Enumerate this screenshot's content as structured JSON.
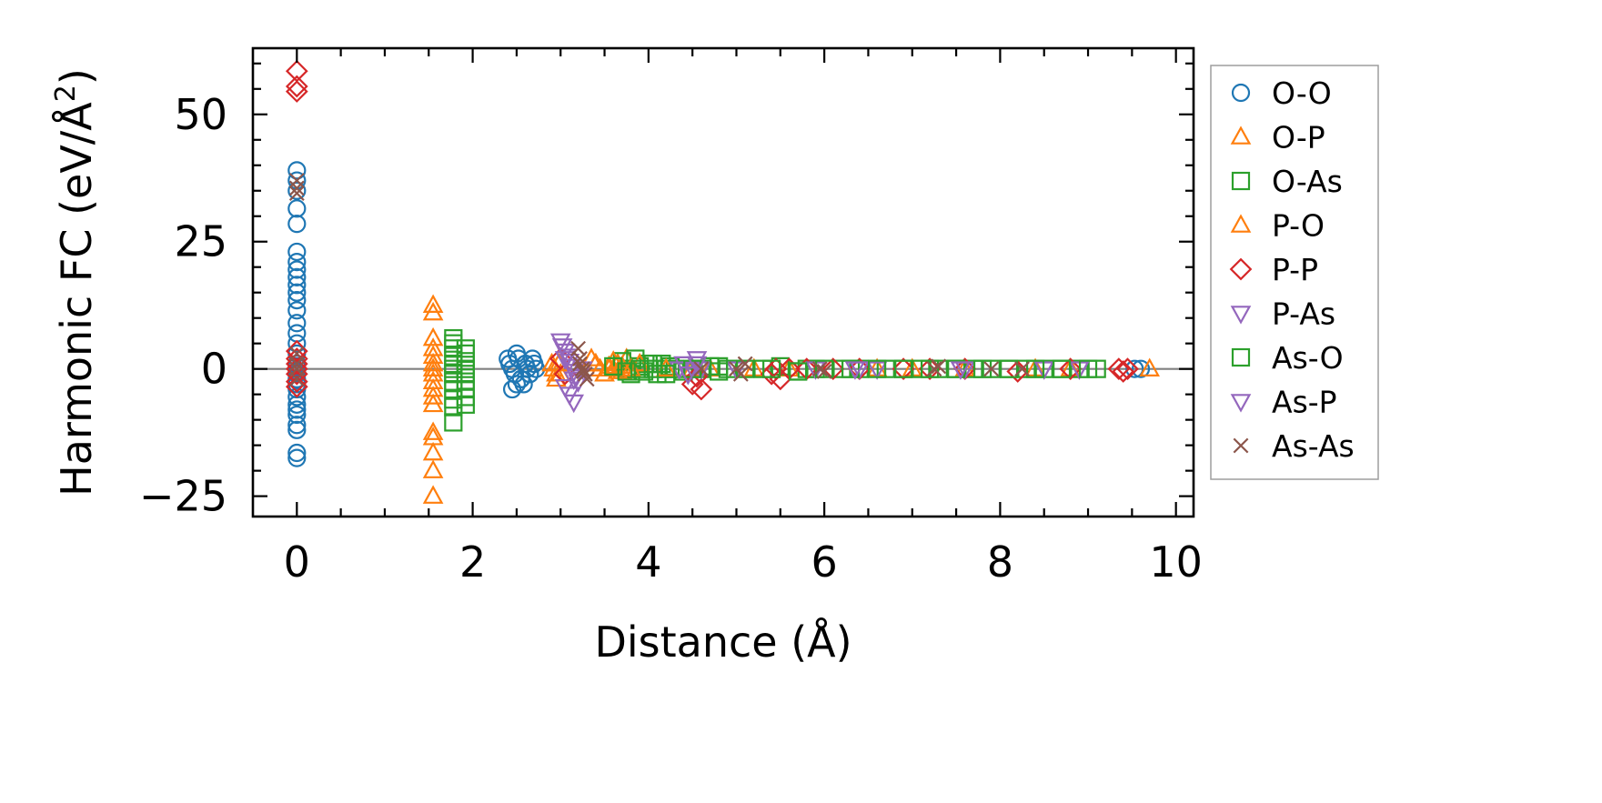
{
  "chart_data": {
    "type": "scatter",
    "xlabel": "Distance (Å)",
    "ylabel": "Harmonic FC (eV/Å",
    "ylabel_sup": "2",
    "ylabel_end": ")",
    "xlim": [
      -0.5,
      10.2
    ],
    "ylim": [
      -29,
      63
    ],
    "xticks": [
      0,
      2,
      4,
      6,
      8,
      10
    ],
    "xtick_labels": [
      "0",
      "2",
      "4",
      "6",
      "8",
      "10"
    ],
    "yticks": [
      -25,
      0,
      25,
      50
    ],
    "ytick_labels": [
      "−25",
      "0",
      "25",
      "50"
    ],
    "grid": false,
    "zero_line": true,
    "legend_position": "outside-right",
    "series": [
      {
        "name": "O-O",
        "marker": "circle",
        "color": "#1f77b4",
        "x": [
          0,
          0,
          0,
          0,
          0,
          0,
          0,
          0,
          0,
          0,
          0,
          0,
          0,
          0,
          0,
          0,
          0,
          0,
          0,
          0,
          0,
          0,
          0,
          0,
          0,
          0,
          0,
          0,
          0,
          0,
          0,
          0,
          2.4,
          2.42,
          2.45,
          2.48,
          2.5,
          2.52,
          2.55,
          2.58,
          2.6,
          2.62,
          2.65,
          2.68,
          2.7,
          2.72,
          2.45,
          2.5,
          2.55,
          2.6,
          2.65,
          9.53,
          9.6
        ],
        "y": [
          39,
          37,
          35,
          31.5,
          28.5,
          23,
          21,
          19.5,
          18,
          16.5,
          15,
          13.5,
          11.5,
          9,
          7,
          5,
          3,
          1,
          -1,
          -2,
          -3,
          -4,
          -5.5,
          -7,
          -8,
          -9,
          -11,
          -12,
          -16.5,
          -17.5,
          -0.5,
          0.5,
          2,
          1,
          0,
          -1,
          3,
          2,
          -2,
          -3,
          1,
          0,
          -1,
          2,
          1,
          0,
          -4,
          -3,
          -2,
          1,
          -1,
          0,
          0
        ]
      },
      {
        "name": "O-P",
        "marker": "triangle-up",
        "color": "#ff7f0e",
        "x": [
          1.55,
          1.55,
          1.55,
          1.55,
          1.55,
          1.55,
          1.55,
          1.55,
          1.55,
          1.55,
          1.55,
          1.55,
          1.55,
          1.55,
          1.55,
          1.55,
          1.55,
          2.92,
          2.95,
          2.98,
          3.4,
          3.45,
          3.5,
          3.55,
          3.6,
          3.65,
          3.7,
          3.75,
          4.5,
          4.7,
          5.2,
          5.6,
          6.6,
          7.0,
          7.6,
          8.4,
          8.8,
          9.7
        ],
        "y": [
          12.5,
          11,
          6,
          4,
          2.5,
          1,
          0,
          -1,
          -2.5,
          -4,
          -5.5,
          -7,
          -12.5,
          -13.5,
          -16.5,
          -20,
          -25,
          0,
          -1,
          1,
          1,
          0,
          -1,
          0.5,
          0,
          1,
          -0.5,
          2,
          0,
          0,
          0,
          0,
          0,
          0,
          0,
          0,
          0,
          0
        ]
      },
      {
        "name": "O-As",
        "marker": "square",
        "color": "#2ca02c",
        "x": [
          1.78,
          1.78,
          1.78,
          1.78,
          1.78,
          1.78,
          1.78,
          1.78,
          1.78,
          1.78,
          1.78,
          1.78,
          1.92,
          1.92,
          1.92,
          1.92,
          1.92,
          1.92,
          1.92,
          1.92,
          1.92,
          3.7,
          3.75,
          3.8,
          3.85,
          3.9,
          3.95,
          4.0,
          4.05,
          4.1,
          4.15,
          4.2,
          4.25,
          4.3,
          4.4,
          4.6,
          4.7,
          4.8,
          4.9,
          5.3,
          5.5,
          5.7,
          5.8,
          5.9,
          6.2,
          6.4,
          6.7,
          6.9,
          7.1,
          7.3,
          7.5,
          7.7,
          7.9,
          8.1,
          8.3,
          8.5,
          8.7,
          8.9,
          9.1
        ],
        "y": [
          6,
          5,
          4,
          2.5,
          1,
          0,
          -1,
          -2.5,
          -4,
          -6,
          -7.5,
          -10.5,
          4,
          3,
          1.5,
          0,
          -1,
          -2.5,
          -4,
          -5.5,
          -7,
          1.5,
          0,
          -1,
          2,
          0.5,
          -0.5,
          1,
          0,
          -1,
          1,
          0,
          0.5,
          0,
          -0.5,
          0,
          0.5,
          -0.5,
          0,
          0,
          0.5,
          -0.5,
          0,
          0,
          0,
          0,
          0,
          0,
          0,
          0,
          0,
          0,
          0,
          0,
          0,
          0,
          0,
          0,
          0
        ]
      },
      {
        "name": "P-O",
        "marker": "triangle-up",
        "color": "#ff7f0e",
        "x": [
          2.9,
          2.95,
          3.0,
          3.35,
          3.4,
          3.5,
          3.55,
          3.6,
          3.65,
          3.7,
          3.8,
          3.9,
          4.2
        ],
        "y": [
          1,
          -2,
          -1,
          2,
          1,
          -1,
          0,
          1.5,
          -0.5,
          0.5,
          0,
          1,
          0
        ]
      },
      {
        "name": "P-P",
        "marker": "diamond",
        "color": "#d62728",
        "x": [
          0,
          0,
          0,
          0,
          0,
          0,
          0,
          0,
          0,
          0,
          3.0,
          3.05,
          4.5,
          4.55,
          4.6,
          5.4,
          5.45,
          5.5,
          5.6,
          5.8,
          6.1,
          6.4,
          6.9,
          7.2,
          7.6,
          8.2,
          8.8,
          9.35,
          9.4,
          9.45
        ],
        "y": [
          58.5,
          55.5,
          54.5,
          3.5,
          2,
          1,
          0,
          -1,
          -2.5,
          -3.5,
          2,
          -1,
          -3,
          -1.5,
          -4,
          -1,
          0,
          -2,
          0,
          0,
          0,
          0,
          0,
          0,
          0,
          -0.5,
          0,
          0,
          -0.5,
          0
        ]
      },
      {
        "name": "P-As",
        "marker": "triangle-down",
        "color": "#9467bd",
        "x": [
          3.0,
          3.02,
          3.05,
          3.08,
          3.1,
          3.12,
          3.15,
          3.18,
          3.2,
          3.05,
          3.1,
          3.15,
          4.35,
          4.4,
          4.45,
          4.5,
          4.55,
          4.6,
          5.0,
          5.9,
          6.4,
          6.6,
          7.6,
          8.5,
          8.9
        ],
        "y": [
          5.5,
          4.5,
          3.5,
          2.5,
          1.5,
          0.5,
          -0.5,
          -1.5,
          -2.5,
          -3.5,
          -5,
          -6.5,
          0,
          1,
          -1,
          0,
          2,
          0,
          0,
          0,
          0,
          0,
          0,
          0,
          0
        ]
      },
      {
        "name": "As-O",
        "marker": "square",
        "color": "#2ca02c",
        "x": [
          3.6,
          3.75,
          3.9,
          4.05,
          4.2,
          4.5,
          4.8,
          5.1,
          5.4,
          5.7,
          6.0,
          6.3,
          6.6,
          6.9,
          7.2,
          7.5,
          7.8,
          8.1,
          8.4,
          8.7,
          9.0
        ],
        "y": [
          0.5,
          -0.5,
          0,
          1,
          -1,
          0,
          0.5,
          0,
          0,
          -0.5,
          0,
          0,
          0,
          0,
          0,
          0,
          0,
          0,
          0,
          0,
          0
        ]
      },
      {
        "name": "As-P",
        "marker": "triangle-down",
        "color": "#9467bd",
        "x": [
          3.05,
          3.15,
          3.25,
          4.45,
          4.55,
          6.35,
          7.55
        ],
        "y": [
          2,
          -2,
          0,
          -1,
          1,
          0,
          0
        ]
      },
      {
        "name": "As-As",
        "marker": "x",
        "color": "#8c564b",
        "x": [
          0,
          0,
          0,
          0,
          0,
          0,
          0,
          3.2,
          3.22,
          3.25,
          3.28,
          3.3,
          3.22,
          3.26,
          4.6,
          5.0,
          5.05,
          5.1,
          5.95,
          6.0,
          7.25,
          7.3,
          7.9,
          8.25
        ],
        "y": [
          37,
          35.5,
          34.5,
          3,
          1,
          0,
          -2,
          4,
          2,
          0,
          -1,
          -2,
          1,
          -0.5,
          0,
          0,
          -1,
          1,
          0,
          -0.5,
          0,
          0.5,
          0,
          0
        ]
      }
    ]
  }
}
